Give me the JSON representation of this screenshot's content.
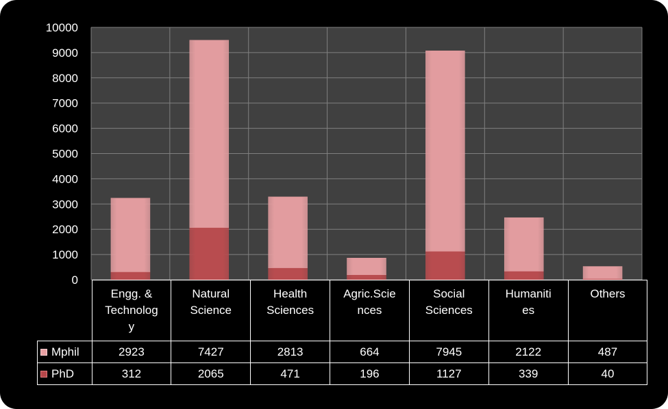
{
  "chart_data": {
    "type": "bar",
    "stacked": true,
    "categories": [
      "Engg. & Technolog y",
      "Natural Science",
      "Health Sciences",
      "Agric.Scie nces",
      "Social Sciences",
      "Humaniti es",
      "Others"
    ],
    "category_lines": [
      [
        "Engg. &",
        "Technolog",
        "y"
      ],
      [
        "Natural",
        "Science"
      ],
      [
        "Health",
        "Sciences"
      ],
      [
        "Agric.Scie",
        "nces"
      ],
      [
        "Social",
        "Sciences"
      ],
      [
        "Humaniti",
        "es"
      ],
      [
        "Others"
      ]
    ],
    "series": [
      {
        "name": "Mphil",
        "values": [
          2923,
          7427,
          2813,
          664,
          7945,
          2122,
          487
        ],
        "values_text": [
          "2923",
          "7427",
          "2813",
          "664",
          "7945",
          "2122",
          "487"
        ],
        "color": "#e29c9f"
      },
      {
        "name": "PhD",
        "values": [
          312,
          2065,
          471,
          196,
          1127,
          339,
          40
        ],
        "values_text": [
          "312",
          "2065",
          "471",
          "196",
          "1127",
          "339",
          "40"
        ],
        "color": "#b84c4f"
      }
    ],
    "stack_order": [
      "PhD",
      "Mphil"
    ],
    "ylim": [
      0,
      10000
    ],
    "yticks": [
      "0",
      "1000",
      "2000",
      "3000",
      "4000",
      "5000",
      "6000",
      "7000",
      "8000",
      "9000",
      "10000"
    ],
    "grid": true,
    "data_table": true,
    "plot_background": "#404040",
    "gridline_color": "#808080",
    "xlabel": "",
    "ylabel": "",
    "title": ""
  }
}
